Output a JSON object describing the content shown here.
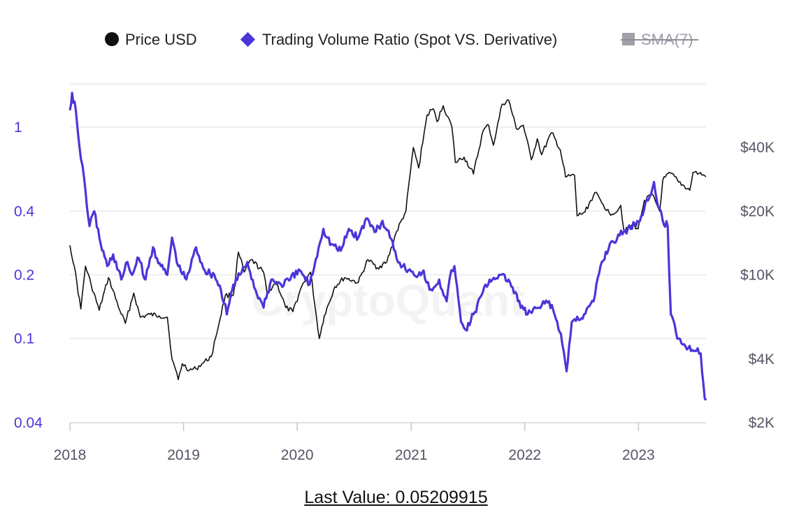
{
  "legend": {
    "price_label": "Price USD",
    "ratio_label": "Trading Volume Ratio (Spot VS. Derivative)",
    "sma_label": "SMA(7)"
  },
  "watermark": "CryptoQuant",
  "footer": {
    "last_value_label": "Last Value: 0.05209915"
  },
  "colors": {
    "price": "#111111",
    "ratio": "#4a36d8",
    "sma": "#a0a0a8",
    "grid": "#e9e9ee"
  },
  "icons": {
    "price": "circle-icon",
    "ratio": "diamond-icon",
    "sma": "square-icon"
  },
  "chart_data": {
    "type": "line",
    "x_range": [
      "2018-01-01",
      "2023-08-06"
    ],
    "x_ticks": [
      "2018",
      "2019",
      "2020",
      "2021",
      "2022",
      "2023"
    ],
    "left_axis": {
      "scale": "log",
      "range": [
        0.04,
        1.6
      ],
      "ticks": [
        0.04,
        0.1,
        0.2,
        0.4,
        1
      ],
      "tick_labels": [
        "0.04",
        "0.1",
        "0.2",
        "0.4",
        "1"
      ]
    },
    "right_axis": {
      "scale": "log",
      "range": [
        2000,
        80000
      ],
      "ticks": [
        2000,
        4000,
        10000,
        20000,
        40000
      ],
      "tick_labels": [
        "$2K",
        "$4K",
        "$10K",
        "$20K",
        "$40K"
      ]
    },
    "grid": true,
    "legend_position": "top",
    "series": [
      {
        "name": "Price USD",
        "axis": "right",
        "points": [
          [
            "2018-01-01",
            13800
          ],
          [
            "2018-01-15",
            11000
          ],
          [
            "2018-02-05",
            6900
          ],
          [
            "2018-02-20",
            11000
          ],
          [
            "2018-03-10",
            9000
          ],
          [
            "2018-04-05",
            6800
          ],
          [
            "2018-05-05",
            9700
          ],
          [
            "2018-06-10",
            6800
          ],
          [
            "2018-06-28",
            5900
          ],
          [
            "2018-07-25",
            8200
          ],
          [
            "2018-08-15",
            6300
          ],
          [
            "2018-09-15",
            6500
          ],
          [
            "2018-10-15",
            6400
          ],
          [
            "2018-11-10",
            6300
          ],
          [
            "2018-11-25",
            4000
          ],
          [
            "2018-12-15",
            3200
          ],
          [
            "2018-12-28",
            3800
          ],
          [
            "2019-01-20",
            3550
          ],
          [
            "2019-02-10",
            3600
          ],
          [
            "2019-03-01",
            3800
          ],
          [
            "2019-03-31",
            4100
          ],
          [
            "2019-04-15",
            5100
          ],
          [
            "2019-05-15",
            8000
          ],
          [
            "2019-06-10",
            8000
          ],
          [
            "2019-06-26",
            12800
          ],
          [
            "2019-07-15",
            10300
          ],
          [
            "2019-08-06",
            11800
          ],
          [
            "2019-09-15",
            10300
          ],
          [
            "2019-09-26",
            8200
          ],
          [
            "2019-10-26",
            9300
          ],
          [
            "2019-11-25",
            7000
          ],
          [
            "2019-12-18",
            6700
          ],
          [
            "2020-01-15",
            8800
          ],
          [
            "2020-02-13",
            10300
          ],
          [
            "2020-03-12",
            5000
          ],
          [
            "2020-03-28",
            6400
          ],
          [
            "2020-05-01",
            8800
          ],
          [
            "2020-06-01",
            9700
          ],
          [
            "2020-07-15",
            9200
          ],
          [
            "2020-08-15",
            11800
          ],
          [
            "2020-09-15",
            10800
          ],
          [
            "2020-10-15",
            11500
          ],
          [
            "2020-11-15",
            16000
          ],
          [
            "2020-12-15",
            20000
          ],
          [
            "2021-01-08",
            40000
          ],
          [
            "2021-01-25",
            32000
          ],
          [
            "2021-02-21",
            57000
          ],
          [
            "2021-03-13",
            61000
          ],
          [
            "2021-03-25",
            53000
          ],
          [
            "2021-04-14",
            63000
          ],
          [
            "2021-05-12",
            50000
          ],
          [
            "2021-05-23",
            34000
          ],
          [
            "2021-06-20",
            36000
          ],
          [
            "2021-07-20",
            30000
          ],
          [
            "2021-08-20",
            48000
          ],
          [
            "2021-09-07",
            51000
          ],
          [
            "2021-09-22",
            41000
          ],
          [
            "2021-10-20",
            64000
          ],
          [
            "2021-11-10",
            67000
          ],
          [
            "2021-12-05",
            49000
          ],
          [
            "2021-12-27",
            51000
          ],
          [
            "2022-01-22",
            35000
          ],
          [
            "2022-02-10",
            44000
          ],
          [
            "2022-02-24",
            37000
          ],
          [
            "2022-03-28",
            47000
          ],
          [
            "2022-04-25",
            39000
          ],
          [
            "2022-05-12",
            29000
          ],
          [
            "2022-06-10",
            29500
          ],
          [
            "2022-06-18",
            19000
          ],
          [
            "2022-07-13",
            19800
          ],
          [
            "2022-08-14",
            24500
          ],
          [
            "2022-09-10",
            21500
          ],
          [
            "2022-09-30",
            19500
          ],
          [
            "2022-10-25",
            20000
          ],
          [
            "2022-11-05",
            21300
          ],
          [
            "2022-11-15",
            16300
          ],
          [
            "2022-12-15",
            17200
          ],
          [
            "2022-12-31",
            16500
          ],
          [
            "2023-01-20",
            22500
          ],
          [
            "2023-02-15",
            24000
          ],
          [
            "2023-03-10",
            20000
          ],
          [
            "2023-03-20",
            28000
          ],
          [
            "2023-04-14",
            30300
          ],
          [
            "2023-05-10",
            27500
          ],
          [
            "2023-06-15",
            25100
          ],
          [
            "2023-06-25",
            30500
          ],
          [
            "2023-07-15",
            30200
          ],
          [
            "2023-08-06",
            29100
          ]
        ]
      },
      {
        "name": "Trading Volume Ratio (Spot VS. Derivative)",
        "axis": "left",
        "points": [
          [
            "2018-01-01",
            1.2
          ],
          [
            "2018-01-08",
            1.45
          ],
          [
            "2018-01-20",
            1.2
          ],
          [
            "2018-02-01",
            0.8
          ],
          [
            "2018-02-20",
            0.5
          ],
          [
            "2018-03-05",
            0.34
          ],
          [
            "2018-03-20",
            0.4
          ],
          [
            "2018-04-10",
            0.28
          ],
          [
            "2018-05-01",
            0.22
          ],
          [
            "2018-05-20",
            0.25
          ],
          [
            "2018-06-15",
            0.19
          ],
          [
            "2018-07-05",
            0.23
          ],
          [
            "2018-07-20",
            0.2
          ],
          [
            "2018-08-10",
            0.24
          ],
          [
            "2018-09-01",
            0.19
          ],
          [
            "2018-09-25",
            0.27
          ],
          [
            "2018-10-20",
            0.22
          ],
          [
            "2018-11-10",
            0.2
          ],
          [
            "2018-11-25",
            0.3
          ],
          [
            "2018-12-15",
            0.22
          ],
          [
            "2019-01-10",
            0.19
          ],
          [
            "2019-02-10",
            0.27
          ],
          [
            "2019-03-10",
            0.21
          ],
          [
            "2019-04-10",
            0.2
          ],
          [
            "2019-05-01",
            0.17
          ],
          [
            "2019-05-20",
            0.13
          ],
          [
            "2019-06-10",
            0.18
          ],
          [
            "2019-07-01",
            0.2
          ],
          [
            "2019-07-25",
            0.23
          ],
          [
            "2019-08-20",
            0.17
          ],
          [
            "2019-09-15",
            0.14
          ],
          [
            "2019-10-10",
            0.19
          ],
          [
            "2019-11-10",
            0.18
          ],
          [
            "2019-12-10",
            0.19
          ],
          [
            "2020-01-10",
            0.21
          ],
          [
            "2020-02-10",
            0.18
          ],
          [
            "2020-03-10",
            0.27
          ],
          [
            "2020-03-25",
            0.33
          ],
          [
            "2020-04-20",
            0.28
          ],
          [
            "2020-05-20",
            0.26
          ],
          [
            "2020-06-15",
            0.33
          ],
          [
            "2020-07-15",
            0.3
          ],
          [
            "2020-08-10",
            0.37
          ],
          [
            "2020-09-10",
            0.32
          ],
          [
            "2020-10-01",
            0.36
          ],
          [
            "2020-10-25",
            0.3
          ],
          [
            "2020-11-15",
            0.24
          ],
          [
            "2020-12-05",
            0.22
          ],
          [
            "2021-01-10",
            0.2
          ],
          [
            "2021-02-10",
            0.21
          ],
          [
            "2021-03-01",
            0.17
          ],
          [
            "2021-04-01",
            0.19
          ],
          [
            "2021-04-25",
            0.15
          ],
          [
            "2021-05-10",
            0.21
          ],
          [
            "2021-05-20",
            0.22
          ],
          [
            "2021-06-10",
            0.12
          ],
          [
            "2021-06-25",
            0.11
          ],
          [
            "2021-07-20",
            0.13
          ],
          [
            "2021-08-15",
            0.16
          ],
          [
            "2021-09-10",
            0.19
          ],
          [
            "2021-10-10",
            0.2
          ],
          [
            "2021-11-10",
            0.19
          ],
          [
            "2021-12-10",
            0.15
          ],
          [
            "2022-01-10",
            0.13
          ],
          [
            "2022-02-15",
            0.14
          ],
          [
            "2022-03-20",
            0.15
          ],
          [
            "2022-04-15",
            0.12
          ],
          [
            "2022-05-01",
            0.095
          ],
          [
            "2022-05-15",
            0.07
          ],
          [
            "2022-06-01",
            0.12
          ],
          [
            "2022-07-10",
            0.13
          ],
          [
            "2022-08-10",
            0.15
          ],
          [
            "2022-09-01",
            0.22
          ],
          [
            "2022-10-01",
            0.28
          ],
          [
            "2022-11-15",
            0.32
          ],
          [
            "2022-12-20",
            0.35
          ],
          [
            "2023-01-10",
            0.38
          ],
          [
            "2023-02-01",
            0.45
          ],
          [
            "2023-02-20",
            0.55
          ],
          [
            "2023-03-05",
            0.42
          ],
          [
            "2023-03-20",
            0.36
          ],
          [
            "2023-04-05",
            0.34
          ],
          [
            "2023-04-15",
            0.13
          ],
          [
            "2023-05-10",
            0.1
          ],
          [
            "2023-06-10",
            0.09
          ],
          [
            "2023-07-10",
            0.09
          ],
          [
            "2023-07-20",
            0.085
          ],
          [
            "2023-08-02",
            0.052
          ],
          [
            "2023-08-06",
            0.05209915
          ]
        ]
      }
    ]
  }
}
